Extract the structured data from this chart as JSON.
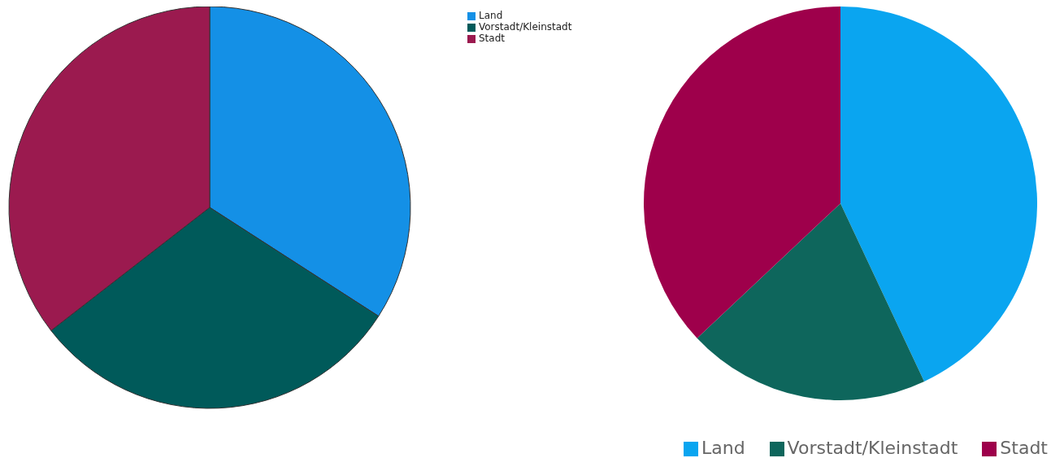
{
  "chart_data": [
    {
      "type": "pie",
      "categories": [
        "Land",
        "Vorstadt/Kleinstadt",
        "Stadt"
      ],
      "values": [
        34.1,
        30.4,
        35.5
      ],
      "colors": [
        "#1490e6",
        "#005a5a",
        "#9b1a4f"
      ],
      "legend": "top right"
    },
    {
      "type": "pie",
      "categories": [
        "Land",
        "Vorstadt/Kleinstadt",
        "Stadt"
      ],
      "values": [
        43.0,
        20.0,
        37.0
      ],
      "colors": [
        "#0aa5f0",
        "#0e665c",
        "#9e004b"
      ],
      "legend": "bottom right"
    }
  ]
}
